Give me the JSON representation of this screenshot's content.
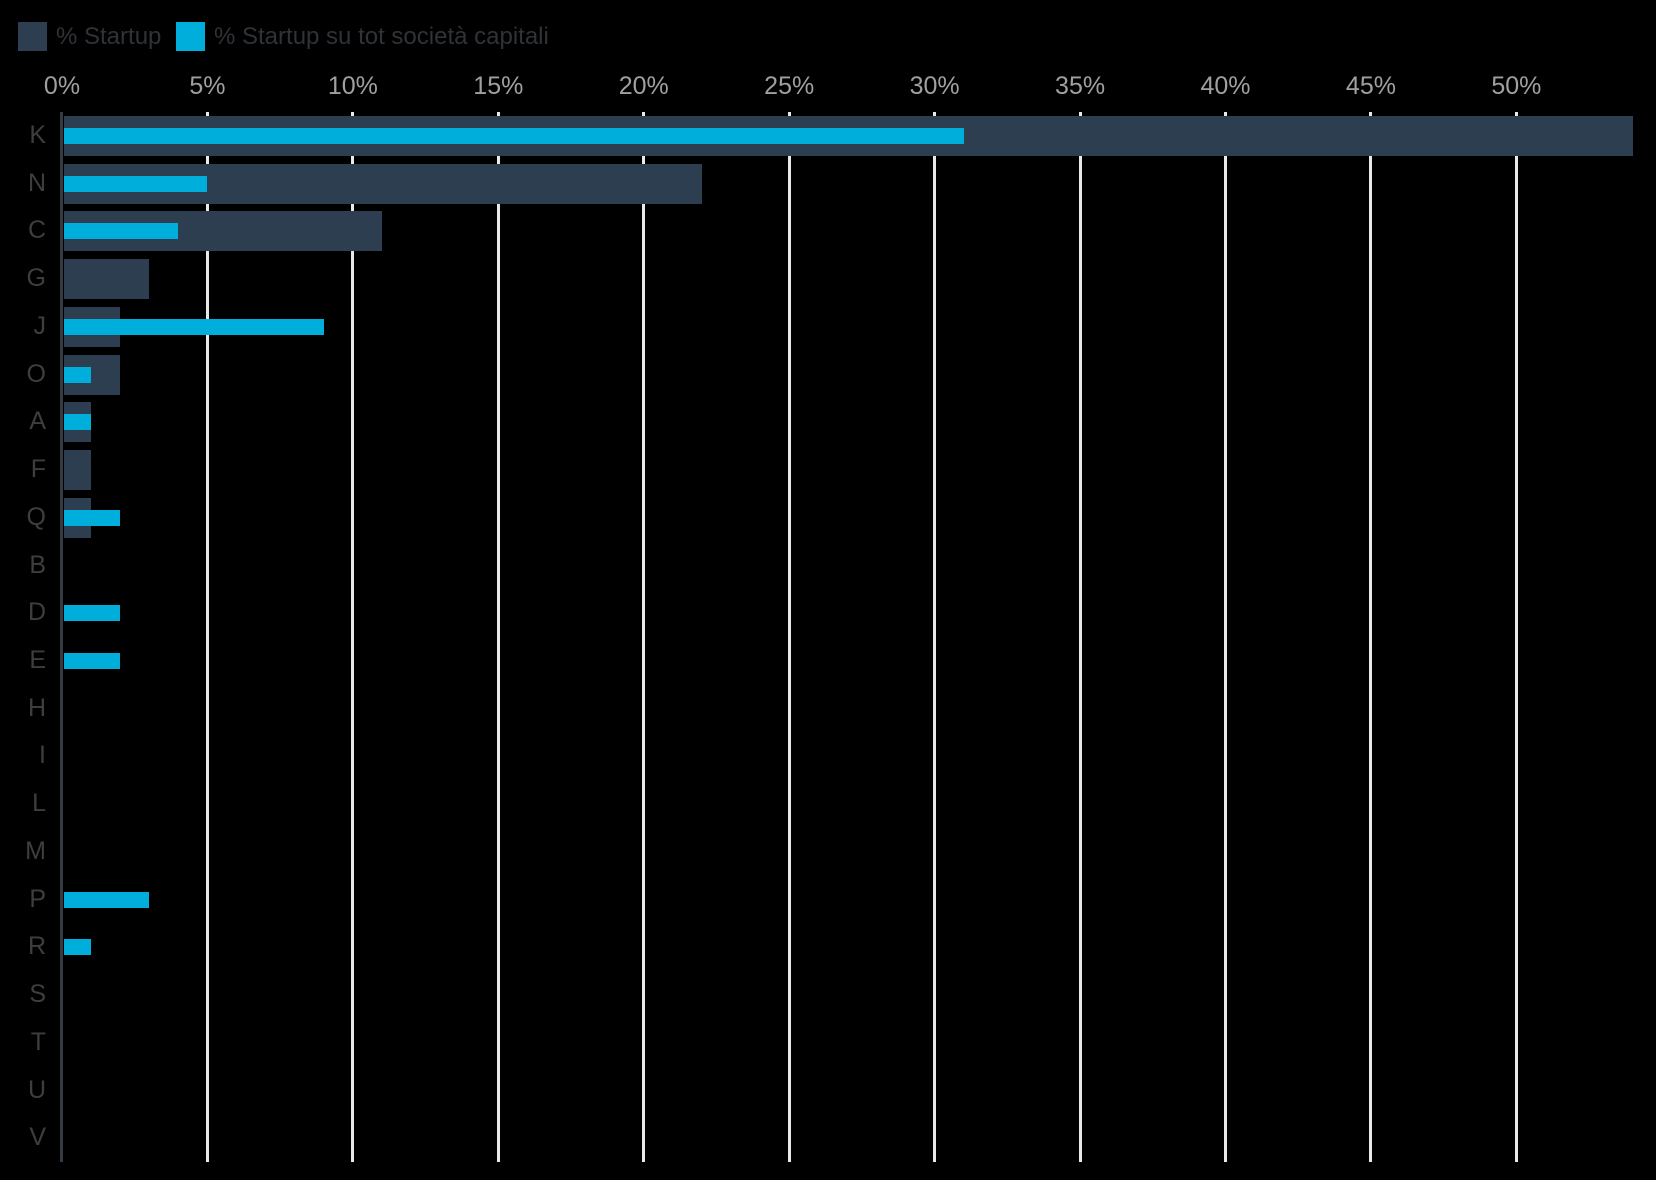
{
  "legend": {
    "items": [
      {
        "label": "% Startup",
        "color": "#2d3e50"
      },
      {
        "label": "% Startup su tot società capitali",
        "color": "#00aedb"
      }
    ]
  },
  "chart_data": {
    "type": "bar",
    "orientation": "horizontal",
    "title": "",
    "xlabel": "",
    "ylabel": "",
    "categories": [
      "K",
      "N",
      "C",
      "G",
      "J",
      "O",
      "A",
      "F",
      "Q",
      "B",
      "D",
      "E",
      "H",
      "I",
      "L",
      "M",
      "P",
      "R",
      "S",
      "T",
      "U",
      "V"
    ],
    "series": [
      {
        "name": "% Startup",
        "color": "#2d3e50",
        "values": [
          54,
          22,
          11,
          3,
          2,
          2,
          1,
          1,
          1,
          0,
          0,
          0,
          0,
          0,
          0,
          0,
          0,
          0,
          0,
          0,
          0,
          0
        ]
      },
      {
        "name": "% Startup su tot società capitali",
        "color": "#00aedb",
        "values": [
          31,
          5,
          4,
          0,
          9,
          1,
          1,
          0,
          2,
          0,
          2,
          2,
          0,
          0,
          0,
          0,
          3,
          1,
          0,
          0,
          0,
          0
        ]
      }
    ],
    "x_tick_labels": [
      "0%",
      "5%",
      "10%",
      "15%",
      "20%",
      "25%",
      "30%",
      "35%",
      "40%",
      "45%",
      "50%"
    ],
    "x_tick_values": [
      0,
      5,
      10,
      15,
      20,
      25,
      30,
      35,
      40,
      45,
      50
    ],
    "xlim": [
      0,
      54.8
    ],
    "grid": true,
    "legend_position": "top-left",
    "colors": {
      "background": "#000000",
      "gridline": "#e9e9e9",
      "axis_line": "#343b42",
      "tick_label": "#a0a0a0",
      "category_label": "#3e3e3e",
      "legend_text": "#2f3338"
    }
  }
}
